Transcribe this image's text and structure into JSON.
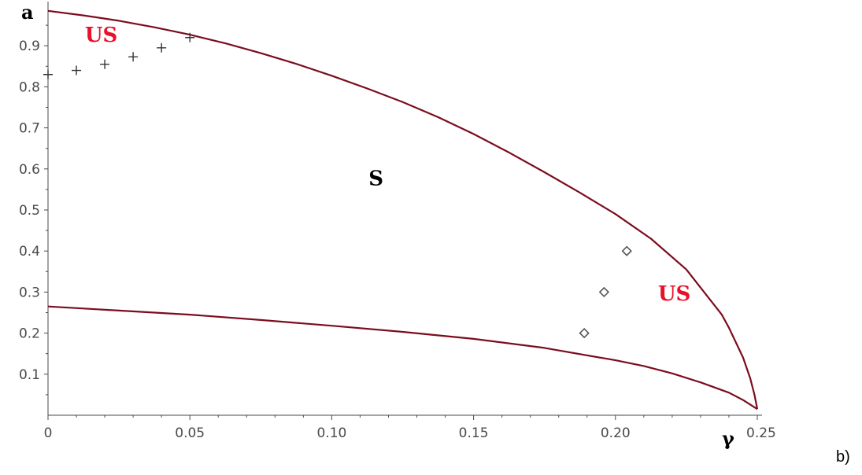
{
  "chart_data": {
    "type": "line",
    "xlabel": "γ",
    "ylabel": "a",
    "xlim": [
      0,
      0.25
    ],
    "ylim": [
      0,
      1.0
    ],
    "x_ticks": [
      0,
      0.05,
      0.1,
      0.15,
      0.2,
      0.25
    ],
    "x_tick_labels": [
      "0",
      "0.05",
      "0.10",
      "0.15",
      "0.20",
      "0.25"
    ],
    "y_ticks": [
      0.1,
      0.2,
      0.3,
      0.4,
      0.5,
      0.6,
      0.7,
      0.8,
      0.9
    ],
    "y_tick_labels": [
      "0.1",
      "0.2",
      "0.3",
      "0.4",
      "0.5",
      "0.6",
      "0.7",
      "0.8",
      "0.9"
    ],
    "grid": false,
    "curve_color": "#7b0c1e",
    "region_labels": [
      {
        "text": "US",
        "gamma": 0.013,
        "a": 0.91,
        "color": "#e8102a"
      },
      {
        "text": "S",
        "gamma": 0.113,
        "a": 0.56,
        "color": "#000000"
      },
      {
        "text": "US",
        "gamma": 0.215,
        "a": 0.28,
        "color": "#e8102a"
      }
    ],
    "series": [
      {
        "kind": "line",
        "x": [
          0,
          0.0125,
          0.025,
          0.0375,
          0.05,
          0.0625,
          0.075,
          0.0875,
          0.1,
          0.1125,
          0.125,
          0.1375,
          0.15,
          0.1625,
          0.175,
          0.1875,
          0.2,
          0.2125,
          0.225,
          0.2375,
          0.24,
          0.245,
          0.2475,
          0.249,
          0.25
        ],
        "y": [
          0.985,
          0.974,
          0.961,
          0.945,
          0.927,
          0.906,
          0.882,
          0.856,
          0.827,
          0.796,
          0.763,
          0.726,
          0.685,
          0.64,
          0.592,
          0.542,
          0.49,
          0.43,
          0.355,
          0.245,
          0.213,
          0.14,
          0.09,
          0.05,
          0.015
        ]
      },
      {
        "kind": "line",
        "x": [
          0,
          0.025,
          0.05,
          0.075,
          0.1,
          0.125,
          0.15,
          0.175,
          0.2,
          0.21,
          0.22,
          0.23,
          0.24,
          0.245,
          0.25
        ],
        "y": [
          0.265,
          0.255,
          0.245,
          0.232,
          0.218,
          0.203,
          0.186,
          0.164,
          0.134,
          0.12,
          0.102,
          0.08,
          0.055,
          0.037,
          0.015
        ]
      },
      {
        "kind": "scatter",
        "marker": "plus",
        "x": [
          0,
          0.01,
          0.02,
          0.03,
          0.04,
          0.05
        ],
        "y": [
          0.83,
          0.84,
          0.855,
          0.873,
          0.895,
          0.92
        ]
      },
      {
        "kind": "scatter",
        "marker": "diamond",
        "x": [
          0.189,
          0.196,
          0.204
        ],
        "y": [
          0.2,
          0.3,
          0.4
        ]
      }
    ]
  },
  "panel_label": "b)"
}
